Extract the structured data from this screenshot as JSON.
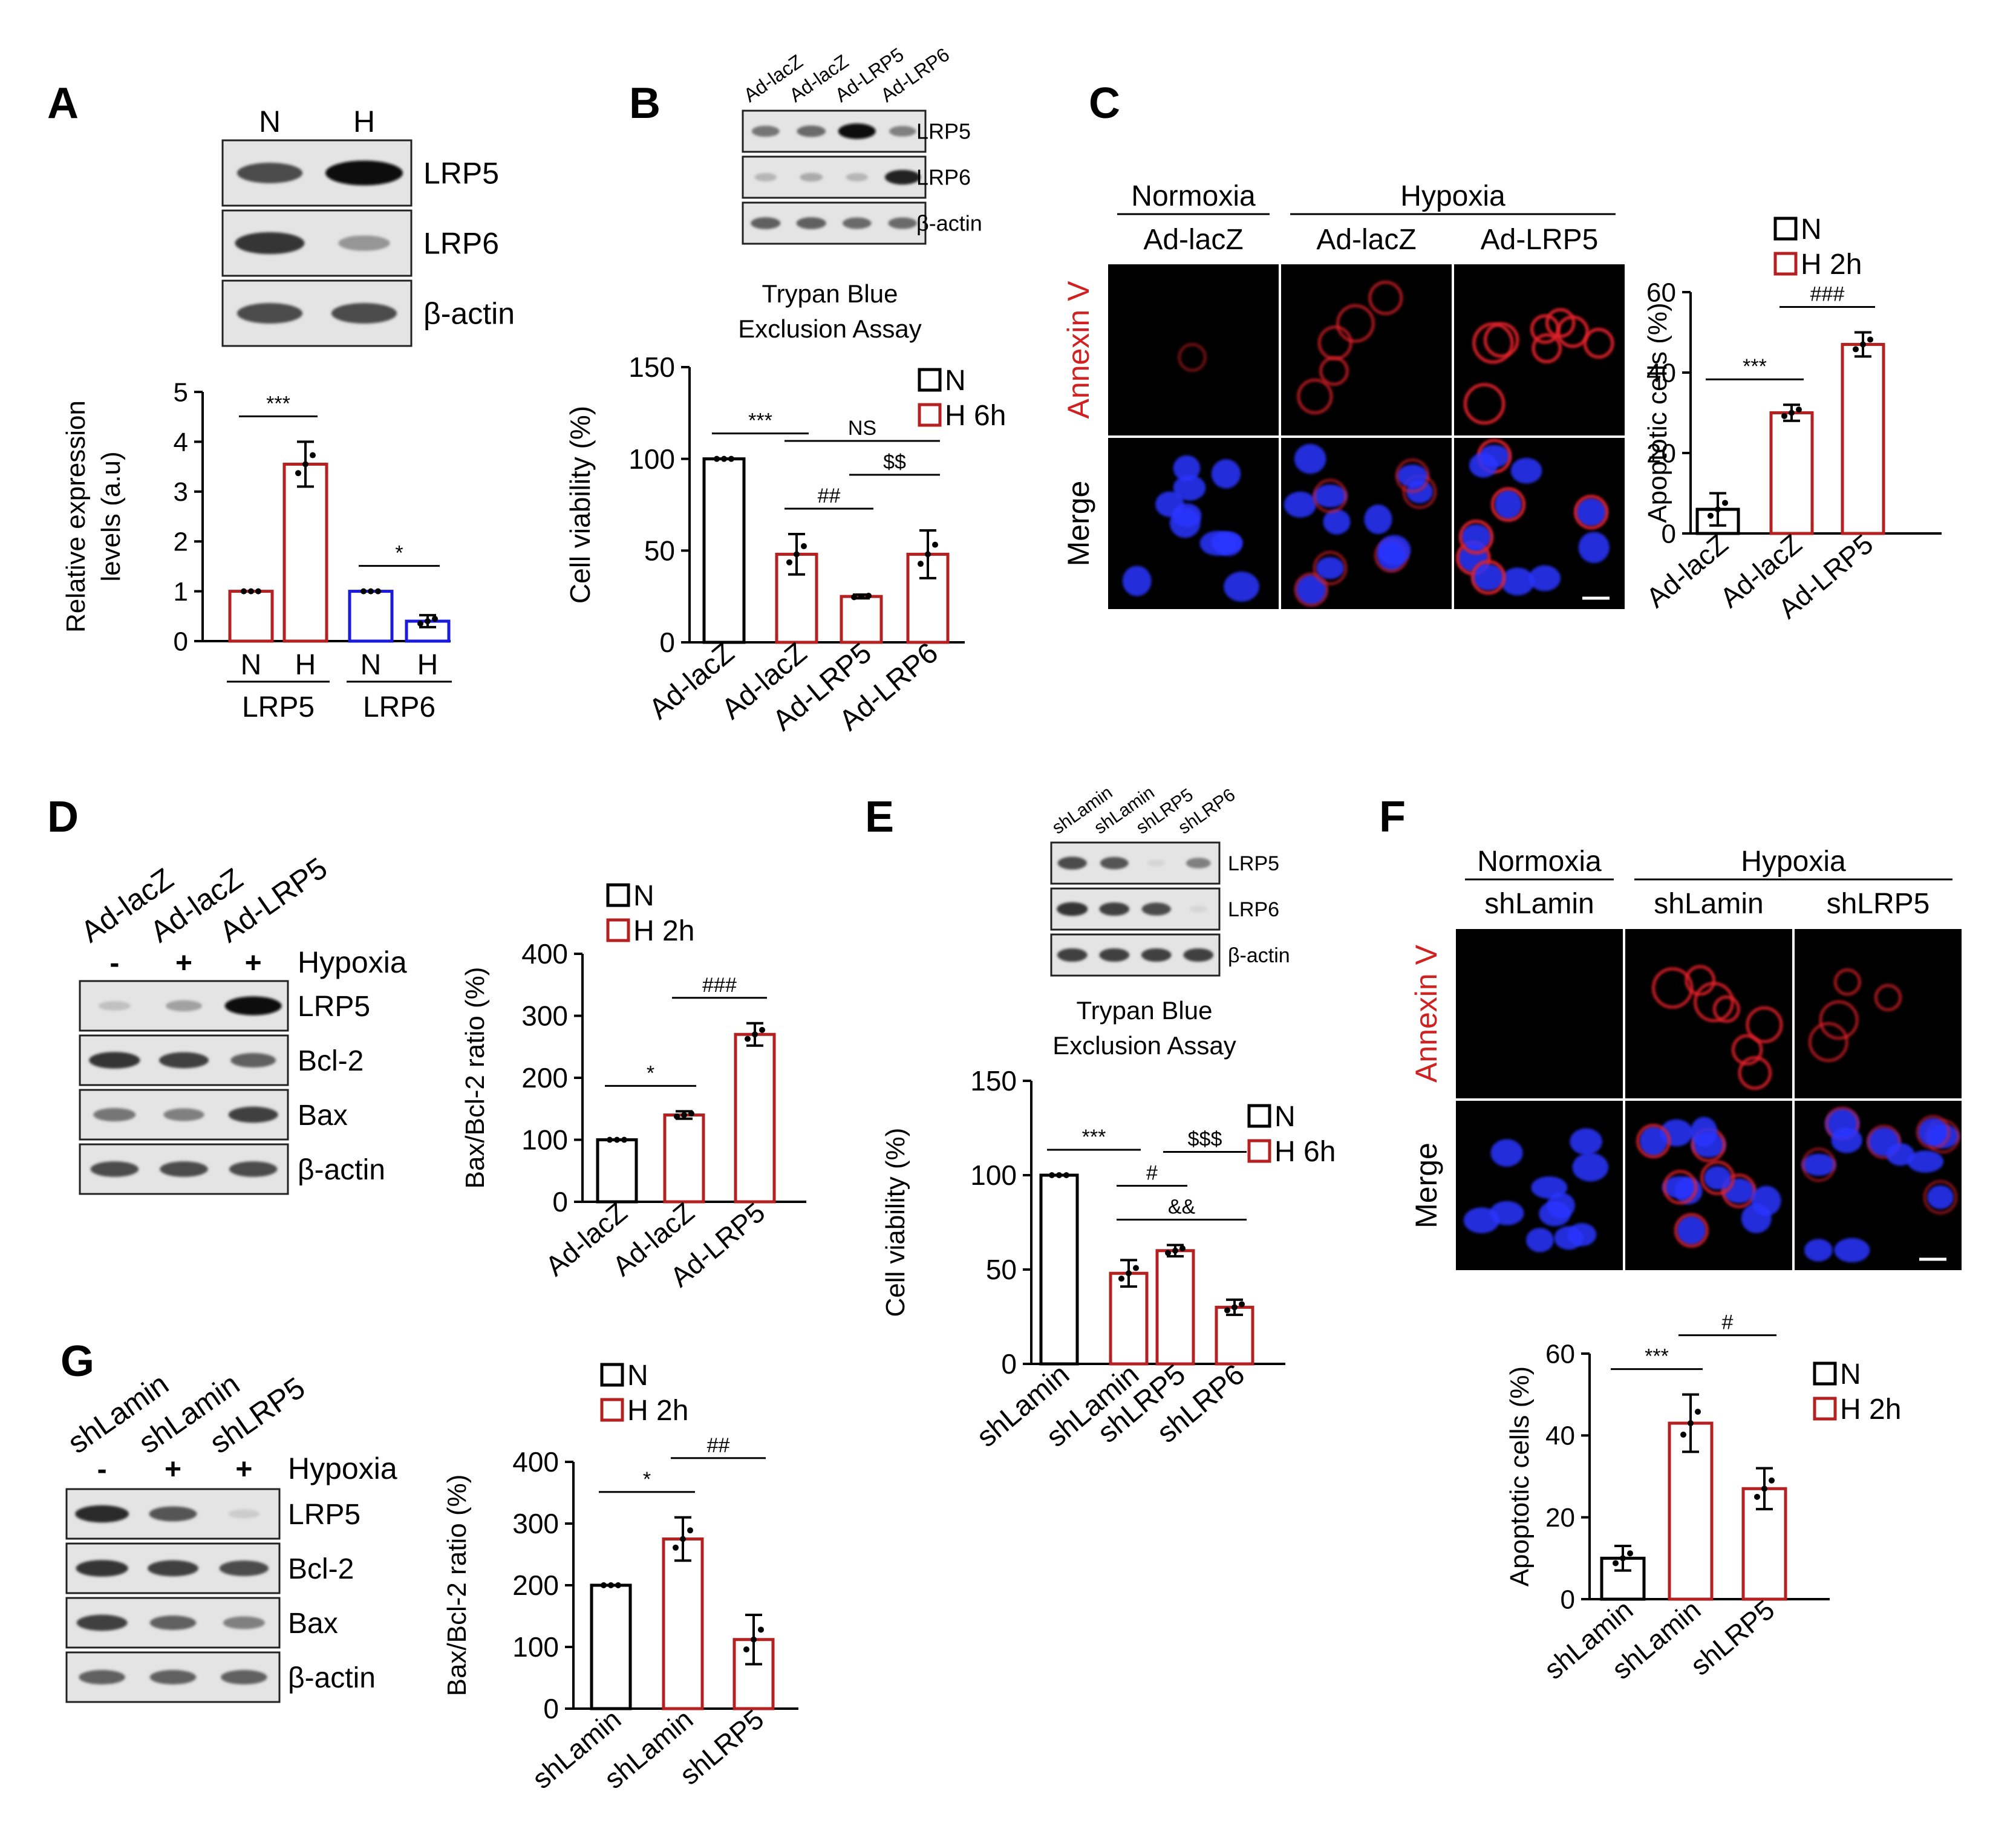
{
  "panels": {
    "A": {
      "letter": "A",
      "blot_lanes": [
        "N",
        "H"
      ],
      "blot_rows": [
        "LRP5",
        "LRP6",
        "β-actin"
      ],
      "blot_intensity": [
        [
          0.7,
          1.0
        ],
        [
          0.8,
          0.35
        ],
        [
          0.7,
          0.7
        ]
      ]
    },
    "B": {
      "letter": "B",
      "blot_lanes": [
        "Ad-lacZ",
        "Ad-lacZ",
        "Ad-LRP5",
        "Ad-LRP6"
      ],
      "blot_rows": [
        "LRP5",
        "LRP6",
        "β-actin"
      ],
      "blot_intensity": [
        [
          0.5,
          0.55,
          1.0,
          0.45
        ],
        [
          0.2,
          0.25,
          0.2,
          0.9
        ],
        [
          0.6,
          0.6,
          0.55,
          0.55
        ]
      ],
      "assay_title": [
        "Trypan Blue",
        "Exclusion Assay"
      ]
    },
    "C": {
      "letter": "C",
      "group_labels": [
        "Normoxia",
        "Hypoxia"
      ],
      "column_labels": [
        "Ad-lacZ",
        "Ad-lacZ",
        "Ad-LRP5"
      ],
      "row_labels": [
        "Annexin V",
        "Merge"
      ]
    },
    "D": {
      "letter": "D",
      "blot_lanes": [
        "Ad-lacZ",
        "Ad-lacZ",
        "Ad-LRP5"
      ],
      "signs": [
        "-",
        "+",
        "+"
      ],
      "condition_label": "Hypoxia",
      "blot_rows": [
        "LRP5",
        "Bcl-2",
        "Bax",
        "β-actin"
      ],
      "blot_intensity": [
        [
          0.15,
          0.3,
          1.0
        ],
        [
          0.8,
          0.75,
          0.6
        ],
        [
          0.5,
          0.45,
          0.75
        ],
        [
          0.7,
          0.7,
          0.7
        ]
      ]
    },
    "E": {
      "letter": "E",
      "blot_lanes": [
        "shLamin",
        "shLamin",
        "shLRP5",
        "shLRP6"
      ],
      "blot_rows": [
        "LRP5",
        "LRP6",
        "β-actin"
      ],
      "blot_intensity": [
        [
          0.7,
          0.65,
          0.05,
          0.45
        ],
        [
          0.8,
          0.75,
          0.7,
          0.05
        ],
        [
          0.75,
          0.75,
          0.75,
          0.75
        ]
      ],
      "assay_title": [
        "Trypan Blue",
        "Exclusion Assay"
      ]
    },
    "F": {
      "letter": "F",
      "group_labels": [
        "Normoxia",
        "Hypoxia"
      ],
      "column_labels": [
        "shLamin",
        "shLamin",
        "shLRP5"
      ],
      "row_labels": [
        "Annexin V",
        "Merge"
      ]
    },
    "G": {
      "letter": "G",
      "blot_lanes": [
        "shLamin",
        "shLamin",
        "shLRP5"
      ],
      "signs": [
        "-",
        "+",
        "+"
      ],
      "condition_label": "Hypoxia",
      "blot_rows": [
        "LRP5",
        "Bcl-2",
        "Bax",
        "β-actin"
      ],
      "blot_intensity": [
        [
          0.85,
          0.65,
          0.1
        ],
        [
          0.8,
          0.75,
          0.7
        ],
        [
          0.75,
          0.6,
          0.45
        ],
        [
          0.6,
          0.6,
          0.6
        ]
      ]
    }
  },
  "colors": {
    "normoxia": "#000000",
    "hypoxia": "#b52020",
    "lrp6": "#1a1adb",
    "annexin_label": "#d02020",
    "nucleus": "#2a35ff",
    "membrane": "#e0202a"
  },
  "chart_data": [
    {
      "id": "A",
      "type": "bar",
      "categories": [
        "N",
        "H",
        "N",
        "H"
      ],
      "group_labels": [
        "LRP5",
        "LRP6"
      ],
      "values": [
        1.0,
        3.55,
        1.0,
        0.4
      ],
      "errors": [
        0.0,
        0.45,
        0.0,
        0.12
      ],
      "bar_colors": [
        "hypoxia",
        "hypoxia",
        "lrp6",
        "lrp6"
      ],
      "ylabel": [
        "Relative expression",
        "levels (a.u)"
      ],
      "ylim": [
        0,
        5
      ],
      "yticks": [
        "0",
        "1",
        "2",
        "3",
        "4",
        "5"
      ],
      "significance": [
        {
          "from": 0,
          "to": 1,
          "label": "***"
        },
        {
          "from": 2,
          "to": 3,
          "label": "*"
        }
      ]
    },
    {
      "id": "B",
      "type": "bar",
      "categories": [
        "Ad-lacZ",
        "Ad-lacZ",
        "Ad-LRP5",
        "Ad-LRP6"
      ],
      "values": [
        100,
        48,
        25,
        48
      ],
      "errors": [
        0,
        11,
        1,
        13
      ],
      "bar_colors": [
        "normoxia",
        "hypoxia",
        "hypoxia",
        "hypoxia"
      ],
      "ylabel": "Cell viability (%)",
      "ylim": [
        0,
        150
      ],
      "yticks": [
        "0",
        "50",
        "100",
        "150"
      ],
      "legend": [
        "N",
        "H 6h"
      ],
      "significance": [
        {
          "from": 0,
          "to": 1,
          "label": "***"
        },
        {
          "from": 1,
          "to": 2,
          "label": "##"
        },
        {
          "from": 2,
          "to": 3,
          "label": "$$"
        },
        {
          "from": 1,
          "to": 3,
          "label": "NS"
        }
      ]
    },
    {
      "id": "C",
      "type": "bar",
      "categories": [
        "Ad-lacZ",
        "Ad-lacZ",
        "Ad-LRP5"
      ],
      "values": [
        6,
        30,
        47
      ],
      "errors": [
        4,
        2,
        3
      ],
      "bar_colors": [
        "normoxia",
        "hypoxia",
        "hypoxia"
      ],
      "ylabel": "Apoptotic cells (%)",
      "ylim": [
        0,
        60
      ],
      "yticks": [
        "0",
        "20",
        "40",
        "60"
      ],
      "legend": [
        "N",
        "H 2h"
      ],
      "significance": [
        {
          "from": 0,
          "to": 1,
          "label": "***"
        },
        {
          "from": 1,
          "to": 2,
          "label": "###"
        }
      ]
    },
    {
      "id": "D",
      "type": "bar",
      "categories": [
        "Ad-lacZ",
        "Ad-lacZ",
        "Ad-LRP5"
      ],
      "values": [
        100,
        140,
        270
      ],
      "errors": [
        0,
        6,
        18
      ],
      "bar_colors": [
        "normoxia",
        "hypoxia",
        "hypoxia"
      ],
      "ylabel": "Bax/Bcl-2 ratio (%)",
      "ylim": [
        0,
        400
      ],
      "yticks": [
        "0",
        "100",
        "200",
        "300",
        "400"
      ],
      "legend": [
        "N",
        "H 2h"
      ],
      "significance": [
        {
          "from": 0,
          "to": 1,
          "label": "*"
        },
        {
          "from": 1,
          "to": 2,
          "label": "###"
        }
      ]
    },
    {
      "id": "E",
      "type": "bar",
      "categories": [
        "shLamin",
        "shLamin",
        "shLRP5",
        "shLRP6"
      ],
      "values": [
        100,
        48,
        60,
        30
      ],
      "errors": [
        0,
        7,
        3,
        4
      ],
      "bar_colors": [
        "normoxia",
        "hypoxia",
        "hypoxia",
        "hypoxia"
      ],
      "ylabel": "Cell viability (%)",
      "ylim": [
        0,
        150
      ],
      "yticks": [
        "0",
        "50",
        "100",
        "150"
      ],
      "legend": [
        "N",
        "H 6h"
      ],
      "significance": [
        {
          "from": 0,
          "to": 1,
          "label": "***"
        },
        {
          "from": 1,
          "to": 3,
          "label": "&&"
        },
        {
          "from": 1,
          "to": 2,
          "label": "#"
        },
        {
          "from": 2,
          "to": 3,
          "label": "$$$"
        }
      ]
    },
    {
      "id": "F",
      "type": "bar",
      "categories": [
        "shLamin",
        "shLamin",
        "shLRP5"
      ],
      "values": [
        10,
        43,
        27
      ],
      "errors": [
        3,
        7,
        5
      ],
      "bar_colors": [
        "normoxia",
        "hypoxia",
        "hypoxia"
      ],
      "ylabel": "Apoptotic cells (%)",
      "ylim": [
        0,
        60
      ],
      "yticks": [
        "0",
        "20",
        "40",
        "60"
      ],
      "legend": [
        "N",
        "H 2h"
      ],
      "significance": [
        {
          "from": 0,
          "to": 1,
          "label": "***"
        },
        {
          "from": 1,
          "to": 2,
          "label": "#"
        }
      ]
    },
    {
      "id": "G",
      "type": "bar",
      "categories": [
        "shLamin",
        "shLamin",
        "shLRP5"
      ],
      "values": [
        200,
        275,
        112
      ],
      "errors": [
        0,
        35,
        40
      ],
      "bar_colors": [
        "normoxia",
        "hypoxia",
        "hypoxia"
      ],
      "ylabel": "Bax/Bcl-2 ratio (%)",
      "ylim": [
        0,
        400
      ],
      "yticks": [
        "0",
        "100",
        "200",
        "300",
        "400"
      ],
      "legend": [
        "N",
        "H 2h"
      ],
      "significance": [
        {
          "from": 0,
          "to": 1,
          "label": "*"
        },
        {
          "from": 1,
          "to": 2,
          "label": "##"
        }
      ]
    }
  ]
}
